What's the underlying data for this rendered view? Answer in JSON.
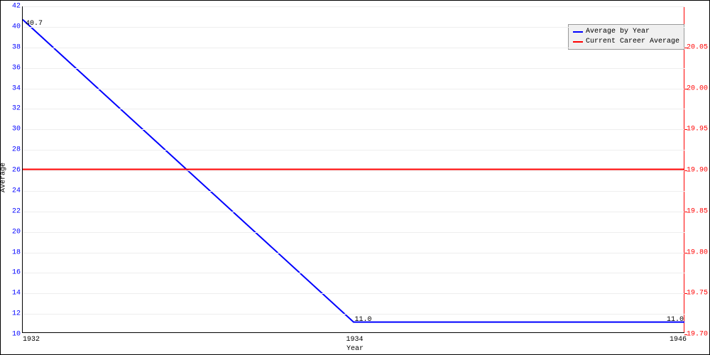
{
  "chart": {
    "type": "line",
    "x_axis": {
      "label": "Year",
      "ticks": [
        {
          "value": 1932,
          "label": "1932",
          "frac": 0.0,
          "cls": "xtick-first"
        },
        {
          "value": 1934,
          "label": "1934",
          "frac": 0.5,
          "cls": ""
        },
        {
          "value": 1946,
          "label": "1946",
          "frac": 1.0,
          "cls": "xtick-last"
        }
      ]
    },
    "y_left": {
      "label": "Average",
      "min": 10,
      "max": 42,
      "color": "#0000ff",
      "ticks": [
        {
          "v": 10,
          "lbl": "10"
        },
        {
          "v": 12,
          "lbl": "12"
        },
        {
          "v": 14,
          "lbl": "14"
        },
        {
          "v": 16,
          "lbl": "16"
        },
        {
          "v": 18,
          "lbl": "18"
        },
        {
          "v": 20,
          "lbl": "20"
        },
        {
          "v": 22,
          "lbl": "22"
        },
        {
          "v": 24,
          "lbl": "24"
        },
        {
          "v": 26,
          "lbl": "26"
        },
        {
          "v": 28,
          "lbl": "28"
        },
        {
          "v": 30,
          "lbl": "30"
        },
        {
          "v": 32,
          "lbl": "32"
        },
        {
          "v": 34,
          "lbl": "34"
        },
        {
          "v": 36,
          "lbl": "36"
        },
        {
          "v": 38,
          "lbl": "38"
        },
        {
          "v": 40,
          "lbl": "40"
        },
        {
          "v": 42,
          "lbl": "42"
        }
      ]
    },
    "y_right": {
      "min": 19.7,
      "max": 20.1,
      "color": "#ff0000",
      "ticks": [
        {
          "v": 19.7,
          "lbl": "19.70"
        },
        {
          "v": 19.75,
          "lbl": "19.75"
        },
        {
          "v": 19.8,
          "lbl": "19.80"
        },
        {
          "v": 19.85,
          "lbl": "19.85"
        },
        {
          "v": 19.9,
          "lbl": "19.90"
        },
        {
          "v": 19.95,
          "lbl": "19.95"
        },
        {
          "v": 20.0,
          "lbl": "20.00"
        },
        {
          "v": 20.05,
          "lbl": "20.05"
        }
      ]
    },
    "series": [
      {
        "name": "Average by Year",
        "color": "#0000ff",
        "width": 2,
        "axis": "left",
        "points": [
          {
            "x": 0.0,
            "y": 40.7,
            "label": "40.7",
            "lx": 4,
            "lyoff": 0
          },
          {
            "x": 0.5,
            "y": 11.0,
            "label": "11.0",
            "lx": 0,
            "lyoff": -12
          },
          {
            "x": 1.0,
            "y": 11.0,
            "label": "11.0",
            "lx": -28,
            "lyoff": -12
          }
        ]
      },
      {
        "name": "Current Career Average",
        "color": "#ff0000",
        "width": 2,
        "axis": "right",
        "points": [
          {
            "x": 0.0,
            "y": 19.9
          },
          {
            "x": 1.0,
            "y": 19.9
          }
        ]
      }
    ],
    "legend": {
      "bg": "#f0f0f0",
      "border": "#999999"
    },
    "grid_color": "#eeeeee",
    "background_color": "#ffffff"
  }
}
